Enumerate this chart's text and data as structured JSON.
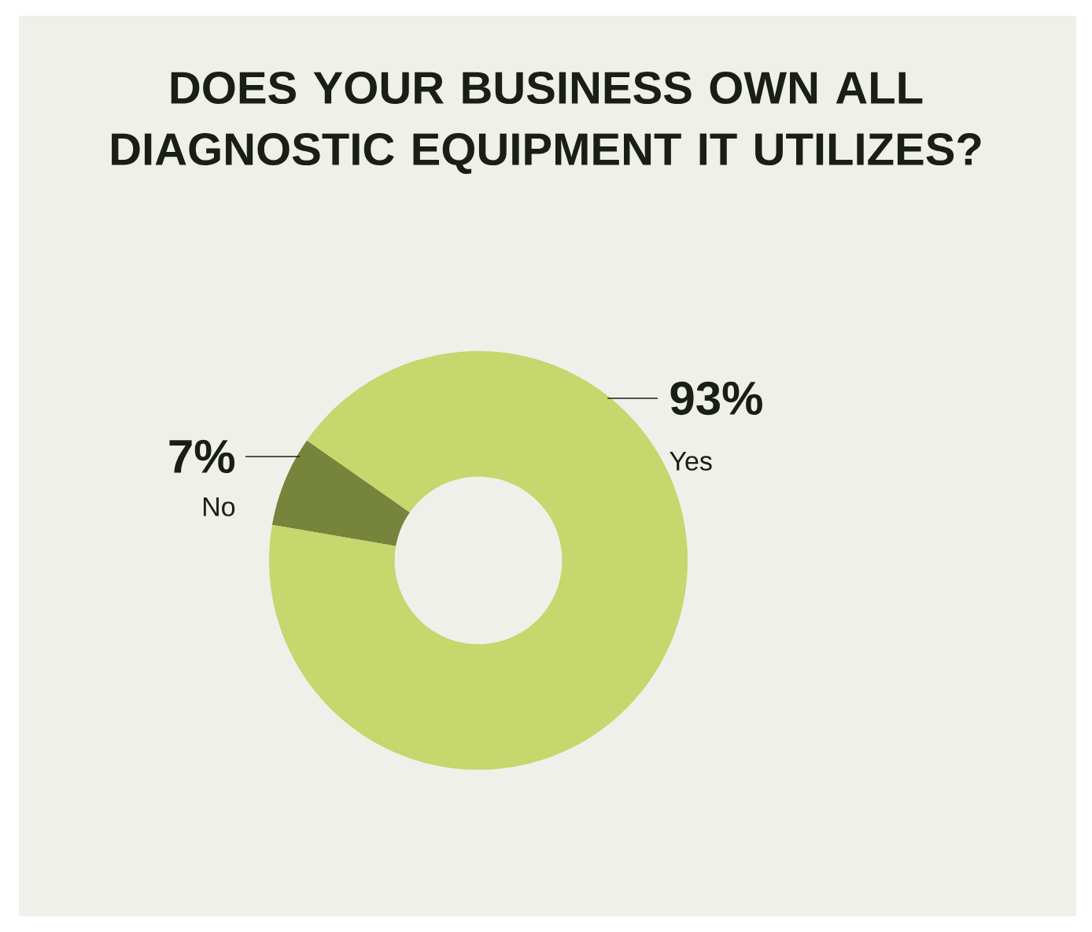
{
  "chart_data": {
    "type": "donut",
    "title": "DOES YOUR BUSINESS OWN ALL DIAGNOSTIC EQUIPMENT IT UTILIZES?",
    "categories": [
      "Yes",
      "No"
    ],
    "values": [
      93,
      7
    ],
    "colors": [
      "#c5d76d",
      "#76843c"
    ],
    "value_labels": [
      "93%",
      "7%"
    ]
  }
}
